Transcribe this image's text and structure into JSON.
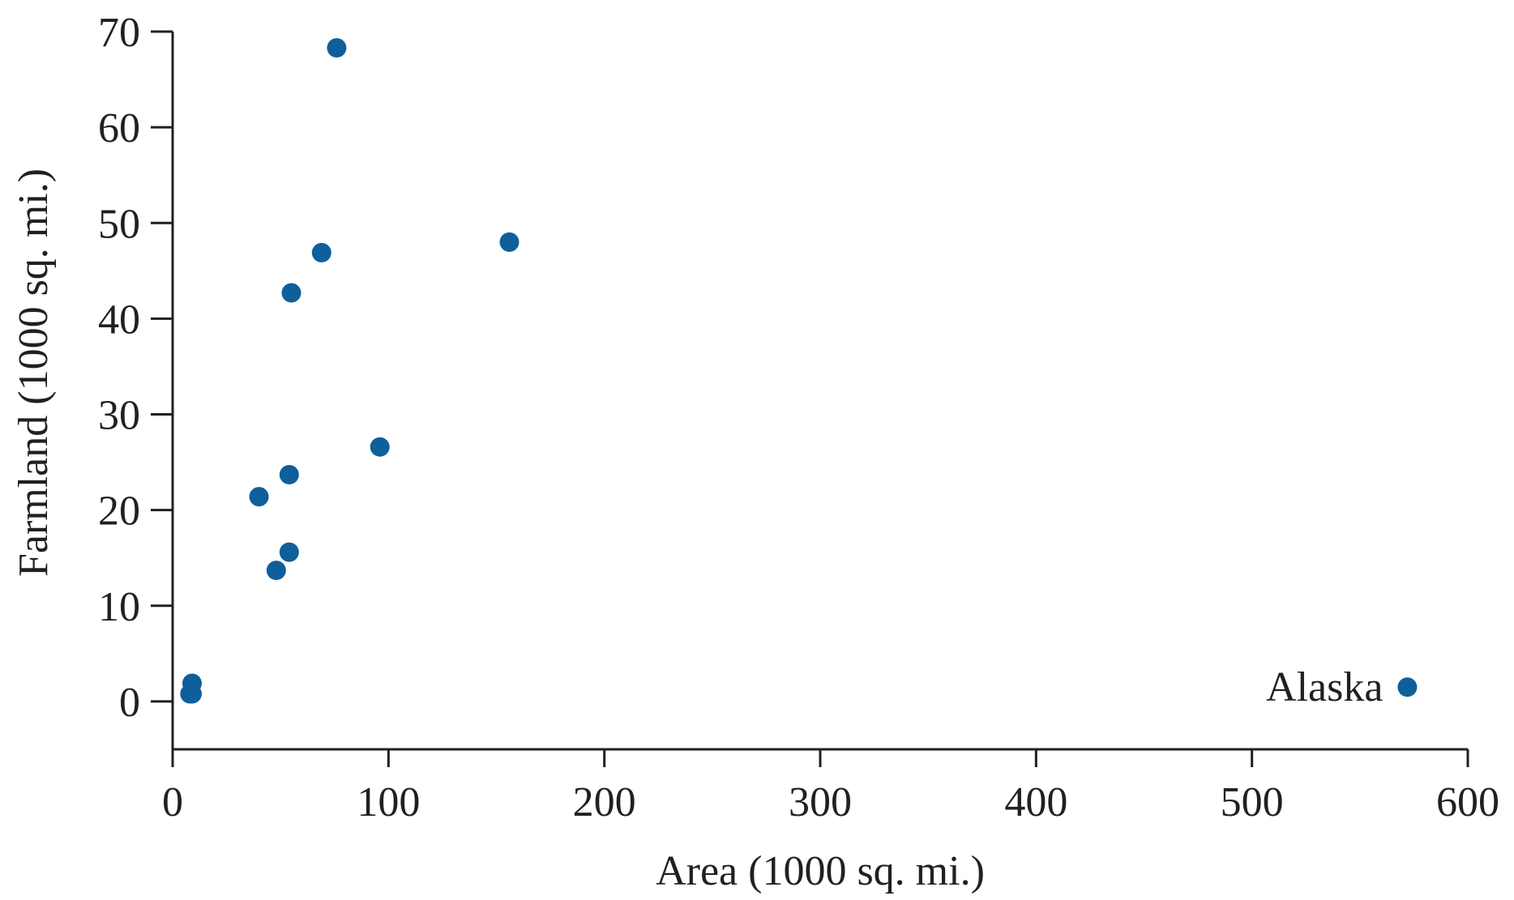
{
  "chart_data": {
    "type": "scatter",
    "title": "",
    "xlabel": "Area (1000 sq. mi.)",
    "ylabel": "Farmland (1000 sq. mi.)",
    "xlim": [
      0,
      600
    ],
    "ylim": [
      -5,
      70
    ],
    "xticks": [
      0,
      100,
      200,
      300,
      400,
      500,
      600
    ],
    "yticks": [
      0,
      10,
      20,
      30,
      40,
      50,
      60,
      70
    ],
    "grid": false,
    "legend": "none",
    "marker_color": "#0f5f9a",
    "points": [
      {
        "x": 76,
        "y": 68.3
      },
      {
        "x": 156,
        "y": 48
      },
      {
        "x": 69,
        "y": 46.9
      },
      {
        "x": 55,
        "y": 42.7
      },
      {
        "x": 96,
        "y": 26.6
      },
      {
        "x": 54,
        "y": 23.7
      },
      {
        "x": 40,
        "y": 21.4
      },
      {
        "x": 54,
        "y": 15.6
      },
      {
        "x": 48,
        "y": 13.7
      },
      {
        "x": 9,
        "y": 1.9
      },
      {
        "x": 8,
        "y": 0.8
      },
      {
        "x": 9,
        "y": 0.8
      },
      {
        "x": 572,
        "y": 1.5
      }
    ],
    "annotations": [
      {
        "text": "Alaska",
        "x": 572,
        "y": 1.5,
        "position": "left"
      }
    ]
  }
}
